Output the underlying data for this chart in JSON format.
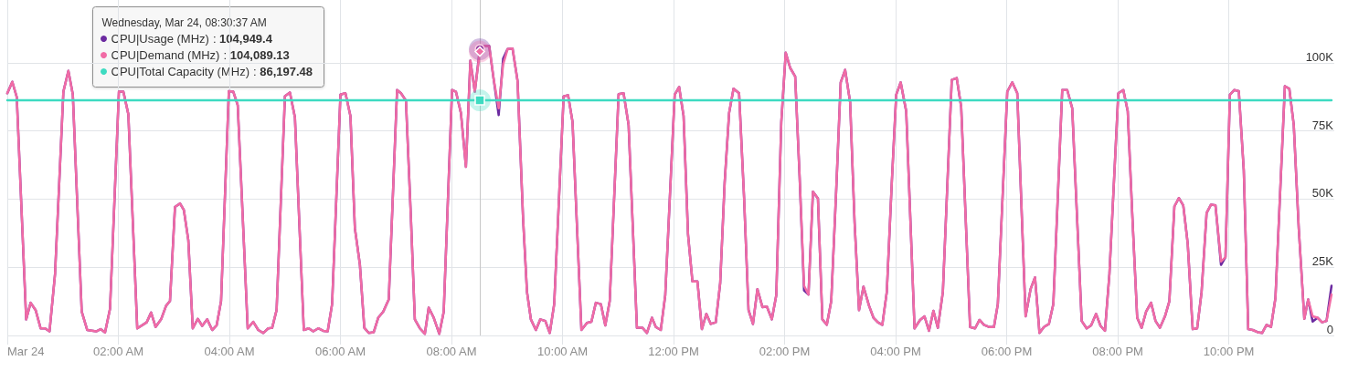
{
  "chart_data": {
    "type": "line",
    "x": [
      0,
      0.09,
      0.17,
      0.34,
      0.42,
      0.51,
      0.6,
      0.68,
      0.76,
      0.86,
      1.01,
      1.1,
      1.18,
      1.34,
      1.44,
      1.6,
      1.68,
      1.76,
      1.85,
      2.01,
      2.09,
      2.18,
      2.34,
      2.51,
      2.59,
      2.67,
      2.77,
      2.86,
      2.93,
      3.02,
      3.11,
      3.18,
      3.26,
      3.34,
      3.43,
      3.51,
      3.6,
      3.69,
      3.77,
      3.85,
      3.99,
      4.07,
      4.15,
      4.33,
      4.43,
      4.52,
      4.61,
      4.7,
      4.77,
      4.85,
      5.0,
      5.09,
      5.18,
      5.34,
      5.43,
      5.51,
      5.6,
      5.69,
      5.77,
      5.85,
      6.0,
      6.09,
      6.18,
      6.26,
      6.35,
      6.43,
      6.51,
      6.6,
      6.68,
      6.77,
      6.87,
      7.02,
      7.09,
      7.18,
      7.27,
      7.34,
      7.43,
      7.52,
      7.59,
      7.68,
      7.78,
      7.86,
      8.01,
      8.08,
      8.17,
      8.26,
      8.34,
      8.42,
      8.51,
      8.59,
      8.68,
      8.76,
      8.85,
      8.93,
      9.01,
      9.1,
      9.19,
      9.29,
      9.36,
      9.43,
      9.52,
      9.6,
      9.69,
      9.77,
      9.85,
      10.02,
      10.1,
      10.18,
      10.34,
      10.44,
      10.52,
      10.6,
      10.69,
      10.77,
      10.85,
      11.01,
      11.1,
      11.19,
      11.34,
      11.44,
      11.52,
      11.61,
      11.68,
      11.77,
      11.85,
      12.02,
      12.1,
      12.18,
      12.26,
      12.34,
      12.43,
      12.51,
      12.59,
      12.67,
      12.76,
      12.84,
      12.92,
      13.0,
      13.08,
      13.18,
      13.27,
      13.35,
      13.43,
      13.51,
      13.6,
      13.68,
      13.77,
      13.85,
      13.94,
      14.02,
      14.1,
      14.19,
      14.27,
      14.35,
      14.43,
      14.51,
      14.6,
      14.68,
      14.76,
      14.84,
      14.93,
      15.01,
      15.09,
      15.18,
      15.26,
      15.34,
      15.42,
      15.52,
      15.6,
      15.68,
      15.76,
      15.84,
      15.93,
      16.01,
      16.09,
      16.19,
      16.34,
      16.44,
      16.52,
      16.6,
      16.68,
      16.76,
      16.85,
      17.01,
      17.1,
      17.18,
      17.34,
      17.43,
      17.51,
      17.59,
      17.68,
      17.77,
      17.84,
      18.01,
      18.1,
      18.19,
      18.34,
      18.43,
      18.51,
      18.59,
      18.67,
      18.76,
      18.84,
      19.0,
      19.09,
      19.18,
      19.35,
      19.44,
      19.52,
      19.61,
      19.69,
      19.77,
      19.85,
      20.01,
      20.1,
      20.18,
      20.26,
      20.35,
      20.43,
      20.51,
      20.6,
      20.68,
      20.76,
      20.85,
      20.93,
      21.02,
      21.1,
      21.18,
      21.26,
      21.35,
      21.43,
      21.51,
      21.6,
      21.68,
      21.76,
      21.86,
      21.94,
      22.02,
      22.1,
      22.18,
      22.27,
      22.35,
      22.43,
      22.52,
      22.6,
      22.68,
      22.76,
      22.84,
      23.01,
      23.09,
      23.17,
      23.26,
      23.36,
      23.43,
      23.51,
      23.6,
      23.68,
      23.76,
      23.85
    ],
    "series": [
      {
        "name": "CPU|Usage (MHz)",
        "color": "#6b2aa0",
        "values": [
          88800,
          93000,
          87400,
          5900,
          12000,
          9300,
          2600,
          2600,
          1500,
          22600,
          89400,
          97000,
          88300,
          8700,
          2000,
          1500,
          2300,
          1100,
          9800,
          89400,
          89400,
          81100,
          2600,
          4800,
          8400,
          3100,
          5900,
          10900,
          12600,
          47100,
          48400,
          46000,
          34900,
          2600,
          6100,
          3500,
          5900,
          2000,
          3700,
          12600,
          89600,
          89400,
          84400,
          2600,
          5000,
          2000,
          900,
          2600,
          2800,
          9300,
          87700,
          89100,
          80000,
          2000,
          2600,
          1500,
          2600,
          1700,
          1500,
          11500,
          88300,
          88800,
          80500,
          39300,
          26000,
          2800,
          900,
          1200,
          6500,
          8700,
          13200,
          90000,
          88800,
          86100,
          42700,
          5900,
          2600,
          600,
          10200,
          6500,
          600,
          8700,
          90000,
          89400,
          81600,
          61800,
          100800,
          89400,
          104949.4,
          106100,
          106100,
          93900,
          80800,
          101500,
          105000,
          105200,
          93300,
          42700,
          15900,
          5900,
          2000,
          5900,
          5300,
          900,
          11500,
          87700,
          88100,
          78300,
          2000,
          4600,
          5000,
          12000,
          11500,
          3700,
          12600,
          88500,
          88800,
          77200,
          2800,
          2800,
          900,
          6500,
          3100,
          2000,
          14800,
          88300,
          91100,
          80500,
          37100,
          19800,
          19800,
          2300,
          7900,
          4200,
          4800,
          19300,
          56000,
          81600,
          90500,
          88800,
          50400,
          9300,
          4200,
          17000,
          10400,
          10600,
          5900,
          14800,
          78300,
          103700,
          98100,
          95000,
          58200,
          16500,
          15000,
          52700,
          50200,
          5900,
          3900,
          12600,
          53800,
          92800,
          97400,
          85500,
          41500,
          9300,
          17900,
          10900,
          6500,
          4800,
          3900,
          15900,
          56000,
          88300,
          92800,
          82200,
          2600,
          5700,
          7000,
          1700,
          9000,
          2800,
          15900,
          93700,
          94400,
          83800,
          3100,
          2600,
          5700,
          3900,
          3100,
          3100,
          11500,
          89400,
          92800,
          88800,
          7000,
          17000,
          21300,
          900,
          3100,
          4200,
          11500,
          90000,
          90000,
          83300,
          5300,
          2600,
          3700,
          7900,
          3500,
          1700,
          22600,
          88800,
          90000,
          82200,
          44900,
          6500,
          2800,
          8700,
          12000,
          5300,
          2800,
          7000,
          12600,
          47300,
          50400,
          47700,
          33700,
          2300,
          2600,
          15900,
          44900,
          48000,
          47700,
          25900,
          28700,
          88300,
          90000,
          89600,
          60500,
          2300,
          2000,
          1200,
          900,
          3900,
          3100,
          13700,
          91400,
          90500,
          77200,
          39300,
          6100,
          13200,
          5100,
          6500,
          4800,
          5300,
          18200
        ]
      },
      {
        "name": "CPU|Demand (MHz)",
        "color": "#f16ba5",
        "values": [
          88800,
          93000,
          87400,
          5900,
          12000,
          9300,
          2600,
          2600,
          1500,
          22600,
          89400,
          97000,
          88300,
          8700,
          2000,
          1500,
          2300,
          1100,
          9800,
          89400,
          89400,
          81100,
          2600,
          4800,
          8400,
          3100,
          5900,
          10900,
          12600,
          47100,
          48400,
          46000,
          34900,
          2600,
          6100,
          3500,
          5900,
          2000,
          3700,
          12600,
          89600,
          89400,
          84400,
          2600,
          5000,
          2000,
          900,
          2600,
          2800,
          9300,
          87700,
          89100,
          80000,
          2000,
          2600,
          1500,
          2600,
          1700,
          1500,
          11500,
          88300,
          88800,
          80500,
          39300,
          26000,
          2800,
          900,
          1200,
          6500,
          8700,
          13200,
          90000,
          88800,
          86100,
          42700,
          5900,
          2600,
          600,
          10200,
          6500,
          600,
          8700,
          90000,
          89400,
          81600,
          61800,
          100800,
          89400,
          104089.13,
          106100,
          106100,
          93900,
          83300,
          99400,
          105000,
          105200,
          93300,
          42700,
          15900,
          5900,
          2000,
          5900,
          5300,
          900,
          11500,
          87700,
          88100,
          78300,
          2000,
          4600,
          5000,
          12000,
          11500,
          3700,
          12600,
          88500,
          88800,
          77200,
          2800,
          2800,
          900,
          6500,
          3100,
          2000,
          14800,
          88300,
          91100,
          80500,
          37100,
          19800,
          19800,
          2300,
          7900,
          4200,
          4800,
          19300,
          56000,
          81600,
          90500,
          88800,
          50400,
          9300,
          4200,
          17000,
          10400,
          10600,
          5900,
          14800,
          78300,
          103700,
          98100,
          95000,
          58200,
          18200,
          15000,
          52700,
          50200,
          5900,
          3900,
          12600,
          53800,
          92800,
          97400,
          85500,
          41500,
          9300,
          17900,
          10900,
          6500,
          4800,
          3900,
          15900,
          56000,
          88300,
          92800,
          82200,
          2600,
          5700,
          7000,
          1700,
          9000,
          2800,
          15900,
          93700,
          94400,
          83800,
          3100,
          2600,
          5700,
          3900,
          3100,
          3100,
          11500,
          89400,
          92800,
          88800,
          7000,
          17000,
          21300,
          900,
          3100,
          4200,
          11500,
          90000,
          90000,
          83300,
          5300,
          2600,
          3700,
          7900,
          3500,
          1700,
          22600,
          88800,
          90000,
          82200,
          44900,
          6500,
          2800,
          8700,
          12000,
          5300,
          2800,
          7000,
          12600,
          47300,
          50400,
          47700,
          33700,
          2300,
          2600,
          15900,
          44900,
          48000,
          47700,
          27100,
          28700,
          88300,
          90000,
          89600,
          60500,
          2300,
          2000,
          1200,
          900,
          3900,
          3100,
          13700,
          91400,
          90500,
          77200,
          39300,
          6100,
          13200,
          7000,
          6500,
          4800,
          5300,
          15000
        ]
      },
      {
        "name": "CPU|Total Capacity (MHz)",
        "color": "#3ddbc1",
        "x": [
          0,
          8.51,
          23.85
        ],
        "values": [
          86197.48,
          86197.48,
          86197.48
        ]
      }
    ],
    "xlim": [
      0,
      23.9
    ],
    "xticks": [
      {
        "value": 0,
        "label": "Mar 24"
      },
      {
        "value": 2,
        "label": "02:00 AM"
      },
      {
        "value": 4,
        "label": "04:00 AM"
      },
      {
        "value": 6,
        "label": "06:00 AM"
      },
      {
        "value": 8,
        "label": "08:00 AM"
      },
      {
        "value": 10,
        "label": "10:00 AM"
      },
      {
        "value": 12,
        "label": "12:00 PM"
      },
      {
        "value": 14,
        "label": "02:00 PM"
      },
      {
        "value": 16,
        "label": "04:00 PM"
      },
      {
        "value": 18,
        "label": "06:00 PM"
      },
      {
        "value": 20,
        "label": "08:00 PM"
      },
      {
        "value": 22,
        "label": "10:00 PM"
      }
    ],
    "ylim": [
      0,
      123000
    ],
    "yticks": [
      0,
      {
        "value": 25000,
        "label": "25K"
      },
      {
        "value": 50000,
        "label": "50K"
      },
      {
        "value": 75000,
        "label": "75K"
      },
      {
        "value": 100000,
        "label": "100K"
      }
    ],
    "grid": true,
    "legend": "top left",
    "ref_lines": [
      {
        "axis": "x",
        "value": 8.51,
        "color": "#c8c8c8"
      }
    ],
    "annotations": [
      "Wednesday, Mar 24, 08:30:37 AM",
      ": 104,949.4",
      ": 104,089.13",
      ": 86,197.48"
    ]
  }
}
